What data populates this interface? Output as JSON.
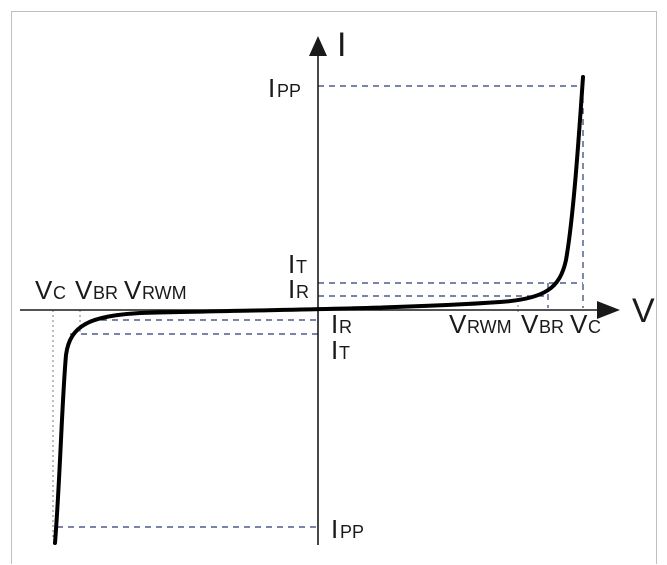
{
  "axes": {
    "y_label": "I",
    "x_label": "V"
  },
  "labels": {
    "ipp_top": {
      "main": "I",
      "sub": "PP"
    },
    "it_top": {
      "main": "I",
      "sub": "T"
    },
    "ir_top": {
      "main": "I",
      "sub": "R"
    },
    "ir_bottom": {
      "main": "I",
      "sub": "R"
    },
    "it_bottom": {
      "main": "I",
      "sub": "T"
    },
    "ipp_bottom": {
      "main": "I",
      "sub": "PP"
    },
    "vc_left": {
      "main": "V",
      "sub": "C"
    },
    "vbr_left": {
      "main": "V",
      "sub": "BR"
    },
    "vrwm_left": {
      "main": "V",
      "sub": "RWM"
    },
    "vrwm_right": {
      "main": "V",
      "sub": "RWM"
    },
    "vbr_right": {
      "main": "V",
      "sub": "BR"
    },
    "vc_right": {
      "main": "V",
      "sub": "C"
    }
  },
  "colors": {
    "axis": "#1a1a1a",
    "curve": "#000000",
    "guide_dashed": "#2b3a78",
    "guide_dotted": "#7a7a7a",
    "frame": "#bfbfbf"
  }
}
